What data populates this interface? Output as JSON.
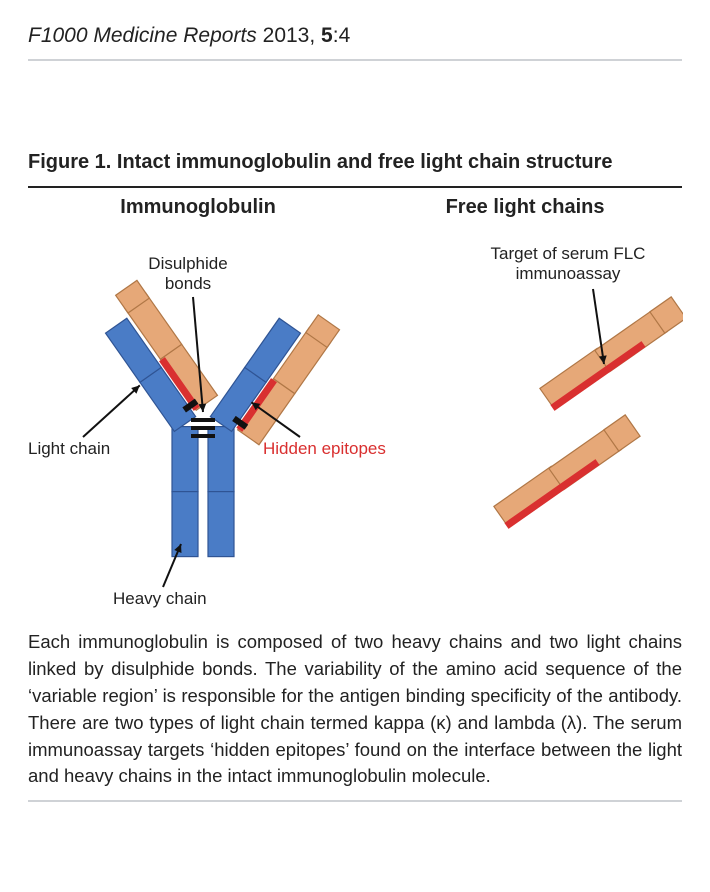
{
  "header": {
    "journal_name": "F1000 Medicine Reports",
    "year": "2013,",
    "volume": "5",
    "issue": ":4"
  },
  "figure": {
    "title": "Figure 1. Intact immunoglobulin and free light chain structure",
    "heading_left": "Immunoglobulin",
    "heading_right": "Free light chains",
    "labels": {
      "disulphide_l1": "Disulphide",
      "disulphide_l2": "bonds",
      "light_chain": "Light chain",
      "hidden_epitopes": "Hidden epitopes",
      "heavy_chain": "Heavy chain",
      "target_l1": "Target of serum FLC",
      "target_l2": "immunoassay"
    },
    "caption": "Each immunoglobulin is composed of two heavy chains and two light chains linked by disulphide bonds. The variability of the amino acid sequence of the ‘variable region’ is responsible for the antigen binding specificity of the antibody. There are two types of light chain termed kappa (κ) and lambda (λ). The serum immunoassay targets ‘hidden epitopes’ found on the interface between the light and heavy chains in the intact immunoglobulin molecule."
  },
  "style": {
    "colors": {
      "heavy_chain_fill": "#4a7cc6",
      "heavy_chain_stroke": "#2f5494",
      "light_chain_fill": "#e6a878",
      "light_chain_stroke": "#b07746",
      "epitope": "#d93030",
      "disulphide": "#111111",
      "text": "#222222",
      "hidden_epitope_text": "#d92f2f",
      "arrow": "#111111"
    },
    "font_sizes": {
      "label": 17,
      "heading": 20
    },
    "shape": {
      "heavy_width": 26,
      "light_width": 26,
      "stroke_width": 1.2
    }
  }
}
